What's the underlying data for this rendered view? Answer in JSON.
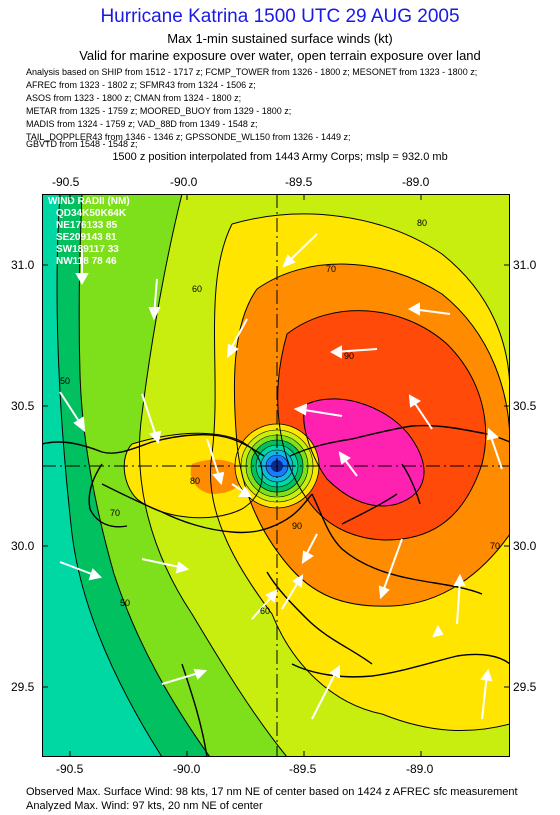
{
  "header": {
    "title": "Hurricane Katrina 1500 UTC 29 AUG 2005",
    "subtitle1": "Max 1-min sustained surface winds (kt)",
    "subtitle2": "Valid for marine exposure over water, open terrain exposure over land"
  },
  "sources": [
    "Analysis based on  SHIP from 1512 - 1717 z;  FCMP_TOWER from 1326 - 1800 z;  MESONET from 1323 - 1800 z;",
    "AFREC from 1323 - 1802 z;  SFMR43 from 1324 - 1506 z;",
    "ASOS from 1323 - 1800 z;  CMAN from 1324 - 1800 z;",
    "METAR from 1325 - 1759 z;  MOORED_BUOY from 1329 - 1800 z;",
    "MADIS from 1324 - 1759 z;  VAD_88D from 1349 - 1548 z;",
    "TAIL_DOPPLER43 from 1346 - 1346 z;  GPSSONDE_WL150 from 1326 - 1449 z;",
    "GBVTD from 1548 - 1548 z;"
  ],
  "position_note": "1500 z position interpolated from 1443 Army Corps; mslp = 932.0 mb",
  "map": {
    "lon_ticks": [
      "-90.5",
      "-90.0",
      "-89.5",
      "-89.0"
    ],
    "lat_ticks": [
      "31.0",
      "30.5",
      "30.0",
      "29.5"
    ],
    "contour_labels": [
      "80",
      "70",
      "60",
      "50",
      "90",
      "80",
      "70",
      "60",
      "50",
      "90",
      "70"
    ],
    "wind_radii": {
      "title": "WIND RADII (NM)",
      "header": "QD34K50K64K",
      "rows": [
        "NE176133 85",
        "SE209143 81",
        "SW189117 33",
        "NW118 78 46"
      ]
    }
  },
  "footer": {
    "line1": "Observed Max. Surface Wind: 98 kts, 17 nm NE of center based on 1424 z AFREC sfc measurement",
    "line2": "Analyzed Max. Wind: 97 kts, 20 nm NE of center"
  },
  "colors": {
    "title": "#1a1ae6",
    "lt30": "#00d8a4",
    "k30_50": "#00c060",
    "k50_60": "#7ee01a",
    "k60_70": "#c8ee10",
    "k70_80": "#ffe500",
    "k80_85": "#ff8c00",
    "k85_90": "#ff4a0a",
    "gt90": "#ff22b0",
    "eyewall": "#1a7aff"
  }
}
